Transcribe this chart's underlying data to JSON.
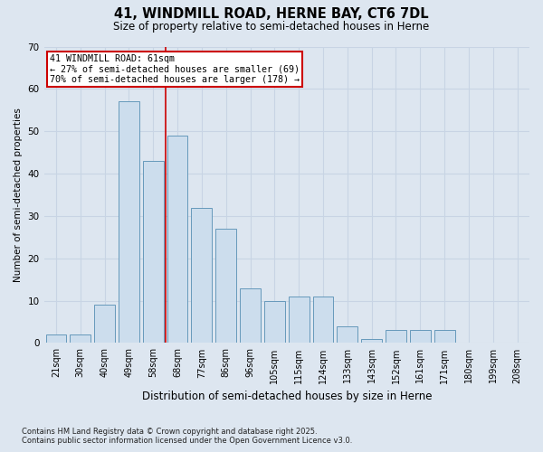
{
  "title_line1": "41, WINDMILL ROAD, HERNE BAY, CT6 7DL",
  "title_line2": "Size of property relative to semi-detached houses in Herne",
  "xlabel": "Distribution of semi-detached houses by size in Herne",
  "ylabel": "Number of semi-detached properties",
  "categories": [
    "21sqm",
    "30sqm",
    "40sqm",
    "49sqm",
    "58sqm",
    "68sqm",
    "77sqm",
    "86sqm",
    "96sqm",
    "105sqm",
    "115sqm",
    "124sqm",
    "133sqm",
    "143sqm",
    "152sqm",
    "161sqm",
    "171sqm",
    "180sqm",
    "199sqm",
    "208sqm"
  ],
  "values": [
    2,
    2,
    9,
    57,
    43,
    49,
    32,
    27,
    13,
    10,
    11,
    11,
    4,
    1,
    3,
    3,
    3,
    0,
    0,
    0
  ],
  "bar_color": "#ccdded",
  "bar_edge_color": "#6699bb",
  "reference_line_value": 4.5,
  "reference_line_color": "#cc0000",
  "annotation_text": "41 WINDMILL ROAD: 61sqm\n← 27% of semi-detached houses are smaller (69)\n70% of semi-detached houses are larger (178) →",
  "annotation_box_color": "#cc0000",
  "ylim": [
    0,
    70
  ],
  "yticks": [
    0,
    10,
    20,
    30,
    40,
    50,
    60,
    70
  ],
  "grid_color": "#c8d4e4",
  "background_color": "#dde6f0",
  "footer_line1": "Contains HM Land Registry data © Crown copyright and database right 2025.",
  "footer_line2": "Contains public sector information licensed under the Open Government Licence v3.0."
}
